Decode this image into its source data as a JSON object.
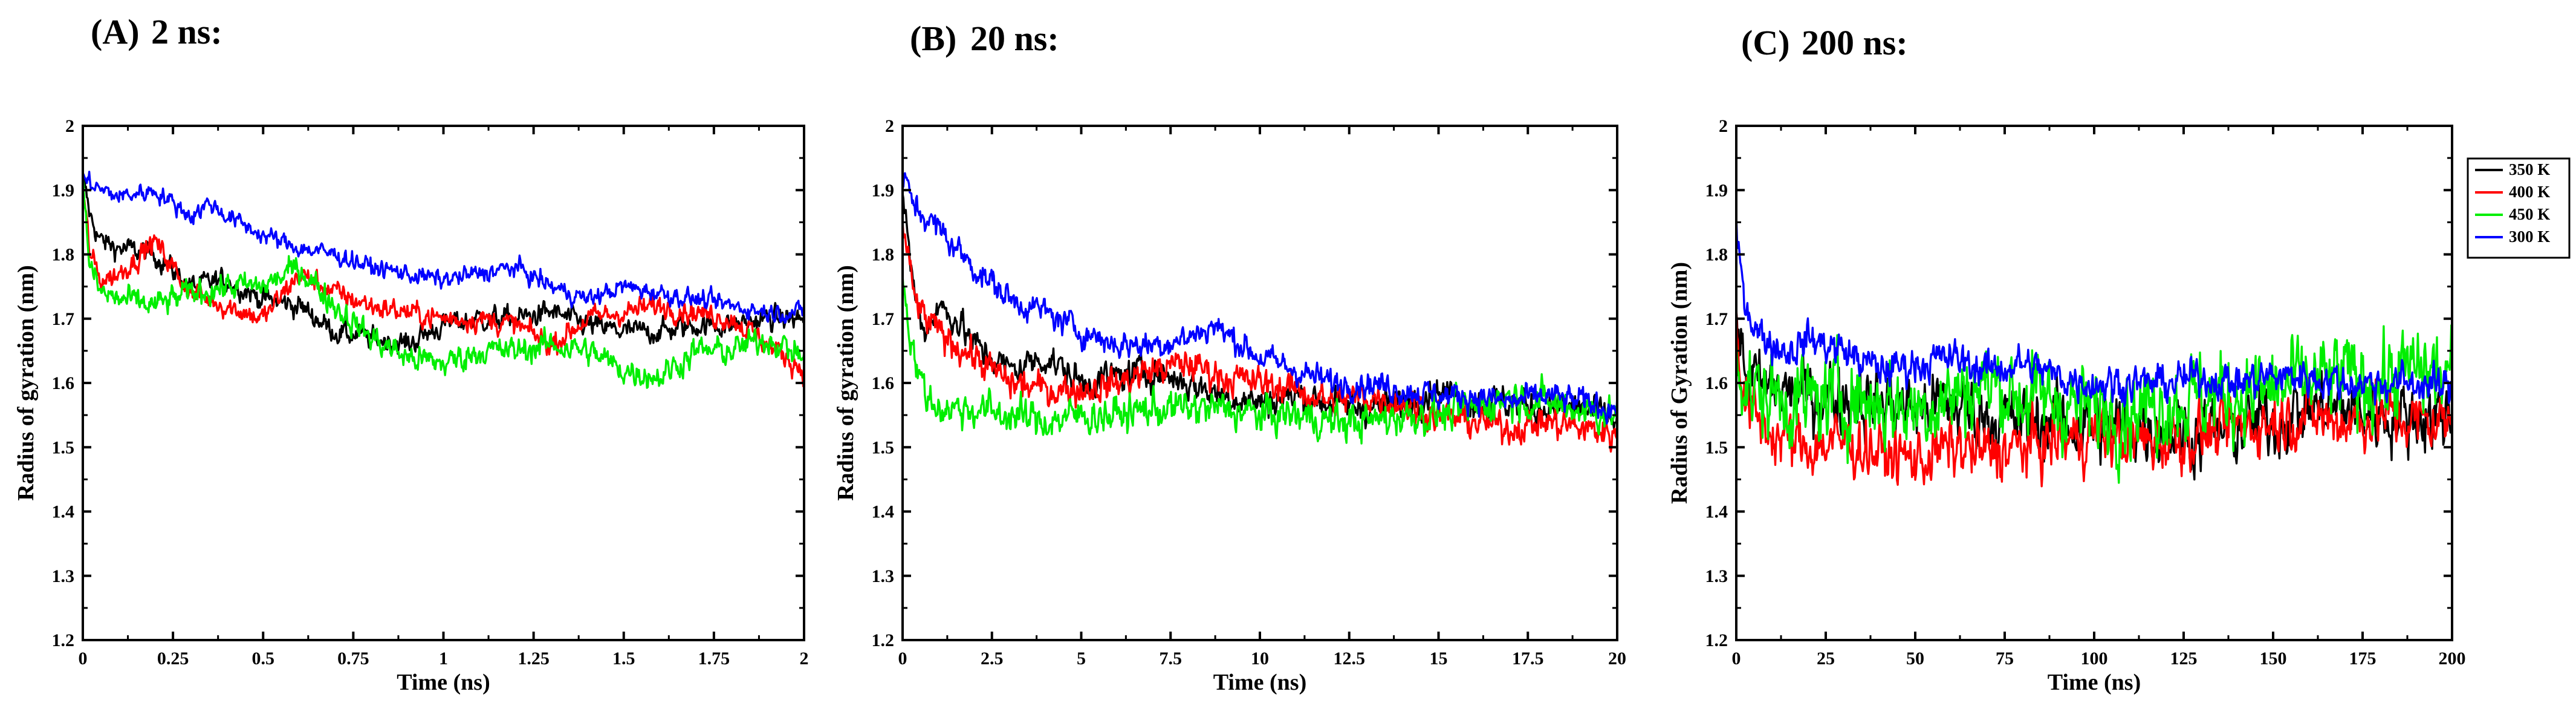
{
  "chart_data": [
    {
      "type": "line",
      "panel_label": "(A)",
      "title": "2 ns:",
      "xlabel": "Time (ns)",
      "ylabel": "Radius of gyration (nm)",
      "xlim": [
        0,
        2
      ],
      "ylim": [
        1.2,
        2.0
      ],
      "xticks": [
        0,
        0.25,
        0.5,
        0.75,
        1,
        1.25,
        1.5,
        1.75,
        2
      ],
      "xtick_labels": [
        "0",
        "0.25",
        "0.5",
        "0.75",
        "1",
        "1.25",
        "1.5",
        "1.75",
        "2"
      ],
      "yticks": [
        1.2,
        1.3,
        1.4,
        1.5,
        1.6,
        1.7,
        1.8,
        1.9,
        2.0
      ],
      "ytick_labels": [
        "1.2",
        "1.3",
        "1.4",
        "1.5",
        "1.6",
        "1.7",
        "1.8",
        "1.9",
        "2"
      ],
      "grid": false,
      "series": [
        {
          "name": "350 K",
          "color": "#000000",
          "noise": 0.01,
          "x": [
            0,
            0.02,
            0.05,
            0.1,
            0.2,
            0.3,
            0.4,
            0.5,
            0.6,
            0.7,
            0.8,
            0.9,
            1.0,
            1.1,
            1.2,
            1.3,
            1.4,
            1.5,
            1.6,
            1.7,
            1.8,
            1.9,
            2.0
          ],
          "y": [
            1.92,
            1.86,
            1.82,
            1.81,
            1.8,
            1.75,
            1.76,
            1.73,
            1.72,
            1.68,
            1.67,
            1.66,
            1.69,
            1.7,
            1.7,
            1.71,
            1.69,
            1.68,
            1.68,
            1.69,
            1.69,
            1.7,
            1.7
          ]
        },
        {
          "name": "400 K",
          "color": "#ff0000",
          "noise": 0.01,
          "x": [
            0,
            0.02,
            0.05,
            0.1,
            0.2,
            0.3,
            0.4,
            0.5,
            0.6,
            0.7,
            0.8,
            0.9,
            1.0,
            1.1,
            1.2,
            1.3,
            1.4,
            1.5,
            1.6,
            1.7,
            1.8,
            1.9,
            2.0
          ],
          "y": [
            1.9,
            1.8,
            1.76,
            1.77,
            1.82,
            1.74,
            1.72,
            1.7,
            1.77,
            1.74,
            1.72,
            1.71,
            1.7,
            1.7,
            1.69,
            1.66,
            1.7,
            1.71,
            1.72,
            1.71,
            1.7,
            1.66,
            1.62
          ]
        },
        {
          "name": "450 K",
          "color": "#00ee00",
          "noise": 0.012,
          "x": [
            0,
            0.02,
            0.05,
            0.1,
            0.2,
            0.3,
            0.4,
            0.5,
            0.6,
            0.7,
            0.8,
            0.9,
            1.0,
            1.1,
            1.2,
            1.3,
            1.4,
            1.5,
            1.6,
            1.7,
            1.8,
            1.9,
            2.0
          ],
          "y": [
            1.91,
            1.78,
            1.74,
            1.73,
            1.72,
            1.74,
            1.75,
            1.75,
            1.78,
            1.72,
            1.67,
            1.64,
            1.63,
            1.65,
            1.65,
            1.66,
            1.65,
            1.62,
            1.61,
            1.65,
            1.65,
            1.67,
            1.64
          ]
        },
        {
          "name": "300 K",
          "color": "#0000ff",
          "noise": 0.008,
          "x": [
            0,
            0.05,
            0.1,
            0.2,
            0.3,
            0.35,
            0.4,
            0.5,
            0.6,
            0.7,
            0.8,
            0.9,
            1.0,
            1.1,
            1.2,
            1.3,
            1.4,
            1.5,
            1.6,
            1.7,
            1.8,
            1.9,
            2.0
          ],
          "y": [
            1.92,
            1.9,
            1.89,
            1.9,
            1.86,
            1.88,
            1.86,
            1.83,
            1.81,
            1.8,
            1.78,
            1.77,
            1.76,
            1.77,
            1.78,
            1.75,
            1.73,
            1.75,
            1.74,
            1.73,
            1.72,
            1.71,
            1.71
          ]
        }
      ]
    },
    {
      "type": "line",
      "panel_label": "(B)",
      "title": "20 ns:",
      "xlabel": "Time (ns)",
      "ylabel": "Radius of gyration (nm)",
      "xlim": [
        0,
        20
      ],
      "ylim": [
        1.2,
        2.0
      ],
      "xticks": [
        0,
        2.5,
        5,
        7.5,
        10,
        12.5,
        15,
        17.5,
        20
      ],
      "xtick_labels": [
        "0",
        "2.5",
        "5",
        "7.5",
        "10",
        "12.5",
        "15",
        "17.5",
        "20"
      ],
      "yticks": [
        1.2,
        1.3,
        1.4,
        1.5,
        1.6,
        1.7,
        1.8,
        1.9,
        2.0
      ],
      "ytick_labels": [
        "1.2",
        "1.3",
        "1.4",
        "1.5",
        "1.6",
        "1.7",
        "1.8",
        "1.9",
        "2"
      ],
      "grid": false,
      "series": [
        {
          "name": "350 K",
          "color": "#000000",
          "noise": 0.014,
          "x": [
            0,
            0.3,
            0.6,
            1.0,
            1.5,
            2.0,
            3.0,
            4.0,
            5.0,
            6.0,
            7.0,
            8.0,
            9.0,
            10.0,
            11.0,
            12.0,
            13.0,
            14.0,
            15.0,
            16.0,
            17.0,
            18.0,
            19.0,
            20.0
          ],
          "y": [
            1.9,
            1.75,
            1.68,
            1.72,
            1.7,
            1.66,
            1.62,
            1.64,
            1.6,
            1.61,
            1.62,
            1.6,
            1.58,
            1.57,
            1.58,
            1.57,
            1.56,
            1.57,
            1.59,
            1.57,
            1.57,
            1.56,
            1.56,
            1.54
          ]
        },
        {
          "name": "400 K",
          "color": "#ff0000",
          "noise": 0.014,
          "x": [
            0,
            0.3,
            0.6,
            1.0,
            1.5,
            2.0,
            3.0,
            4.0,
            5.0,
            6.0,
            7.0,
            8.0,
            9.0,
            10.0,
            11.0,
            12.0,
            13.0,
            14.0,
            15.0,
            16.0,
            17.0,
            18.0,
            19.0,
            20.0
          ],
          "y": [
            1.85,
            1.74,
            1.7,
            1.68,
            1.66,
            1.64,
            1.6,
            1.59,
            1.59,
            1.6,
            1.62,
            1.63,
            1.61,
            1.6,
            1.59,
            1.57,
            1.58,
            1.57,
            1.55,
            1.54,
            1.53,
            1.54,
            1.53,
            1.52
          ]
        },
        {
          "name": "450 K",
          "color": "#00ee00",
          "noise": 0.016,
          "x": [
            0,
            0.2,
            0.5,
            0.8,
            1.2,
            2.0,
            3.0,
            4.0,
            5.0,
            6.0,
            7.0,
            8.0,
            9.0,
            10.0,
            11.0,
            12.0,
            13.0,
            14.0,
            15.0,
            16.0,
            17.0,
            18.0,
            19.0,
            20.0
          ],
          "y": [
            1.78,
            1.68,
            1.6,
            1.57,
            1.56,
            1.56,
            1.55,
            1.54,
            1.55,
            1.55,
            1.56,
            1.56,
            1.56,
            1.55,
            1.55,
            1.54,
            1.54,
            1.55,
            1.55,
            1.56,
            1.58,
            1.57,
            1.56,
            1.55
          ]
        },
        {
          "name": "300 K",
          "color": "#0000ff",
          "noise": 0.012,
          "x": [
            0,
            0.3,
            0.6,
            1.0,
            2.0,
            3.0,
            4.0,
            5.0,
            6.0,
            7.0,
            8.0,
            8.7,
            9.5,
            10.0,
            11.0,
            12.0,
            13.0,
            14.0,
            15.0,
            16.0,
            17.0,
            18.0,
            19.0,
            20.0
          ],
          "y": [
            1.92,
            1.88,
            1.86,
            1.84,
            1.78,
            1.73,
            1.71,
            1.68,
            1.66,
            1.66,
            1.67,
            1.69,
            1.66,
            1.64,
            1.62,
            1.6,
            1.6,
            1.59,
            1.58,
            1.58,
            1.57,
            1.58,
            1.57,
            1.56
          ]
        }
      ]
    },
    {
      "type": "line",
      "panel_label": "(C)",
      "title": "200 ns:",
      "xlabel": "Time (ns)",
      "ylabel": "Radius of Gyration (nm)",
      "xlim": [
        0,
        200
      ],
      "ylim": [
        1.2,
        2.0
      ],
      "xticks": [
        0,
        25,
        50,
        75,
        100,
        125,
        150,
        175,
        200
      ],
      "xtick_labels": [
        "0",
        "25",
        "50",
        "75",
        "100",
        "125",
        "150",
        "175",
        "200"
      ],
      "yticks": [
        1.2,
        1.3,
        1.4,
        1.5,
        1.6,
        1.7,
        1.8,
        1.9,
        2.0
      ],
      "ytick_labels": [
        "1.2",
        "1.3",
        "1.4",
        "1.5",
        "1.6",
        "1.7",
        "1.8",
        "1.9",
        "2"
      ],
      "grid": false,
      "legend": {
        "position": "top-right",
        "entries": [
          "350 K",
          "400 K",
          "450 K",
          "300 K"
        ]
      },
      "series": [
        {
          "name": "350 K",
          "color": "#000000",
          "noise": 0.03,
          "x": [
            0,
            2,
            5,
            10,
            20,
            30,
            40,
            50,
            60,
            70,
            80,
            90,
            100,
            110,
            120,
            130,
            140,
            150,
            160,
            170,
            180,
            190,
            200
          ],
          "y": [
            1.72,
            1.62,
            1.6,
            1.59,
            1.58,
            1.58,
            1.57,
            1.56,
            1.57,
            1.55,
            1.54,
            1.54,
            1.53,
            1.53,
            1.53,
            1.52,
            1.53,
            1.54,
            1.56,
            1.56,
            1.55,
            1.55,
            1.55
          ]
        },
        {
          "name": "400 K",
          "color": "#ff0000",
          "noise": 0.026,
          "x": [
            0,
            2,
            5,
            10,
            20,
            30,
            40,
            50,
            60,
            70,
            80,
            90,
            100,
            110,
            120,
            130,
            140,
            150,
            160,
            170,
            180,
            190,
            200
          ],
          "y": [
            1.7,
            1.58,
            1.55,
            1.52,
            1.5,
            1.51,
            1.49,
            1.48,
            1.5,
            1.49,
            1.5,
            1.51,
            1.52,
            1.51,
            1.51,
            1.52,
            1.53,
            1.54,
            1.55,
            1.54,
            1.55,
            1.54,
            1.54
          ]
        },
        {
          "name": "450 K",
          "color": "#00ee00",
          "noise": 0.038,
          "x": [
            0,
            2,
            5,
            10,
            20,
            30,
            40,
            50,
            60,
            70,
            80,
            90,
            100,
            110,
            120,
            130,
            140,
            150,
            160,
            170,
            180,
            190,
            200
          ],
          "y": [
            1.68,
            1.6,
            1.58,
            1.58,
            1.57,
            1.58,
            1.57,
            1.56,
            1.58,
            1.6,
            1.58,
            1.57,
            1.56,
            1.56,
            1.57,
            1.58,
            1.58,
            1.59,
            1.6,
            1.61,
            1.6,
            1.62,
            1.61
          ]
        },
        {
          "name": "300 K",
          "color": "#0000ff",
          "noise": 0.016,
          "x": [
            0,
            1,
            3,
            6,
            10,
            15,
            20,
            30,
            40,
            50,
            60,
            70,
            80,
            90,
            100,
            110,
            120,
            130,
            140,
            150,
            160,
            170,
            180,
            190,
            200
          ],
          "y": [
            1.84,
            1.78,
            1.72,
            1.68,
            1.66,
            1.65,
            1.67,
            1.65,
            1.62,
            1.63,
            1.64,
            1.62,
            1.63,
            1.61,
            1.6,
            1.6,
            1.6,
            1.61,
            1.6,
            1.61,
            1.61,
            1.6,
            1.6,
            1.6,
            1.59
          ]
        }
      ]
    }
  ]
}
